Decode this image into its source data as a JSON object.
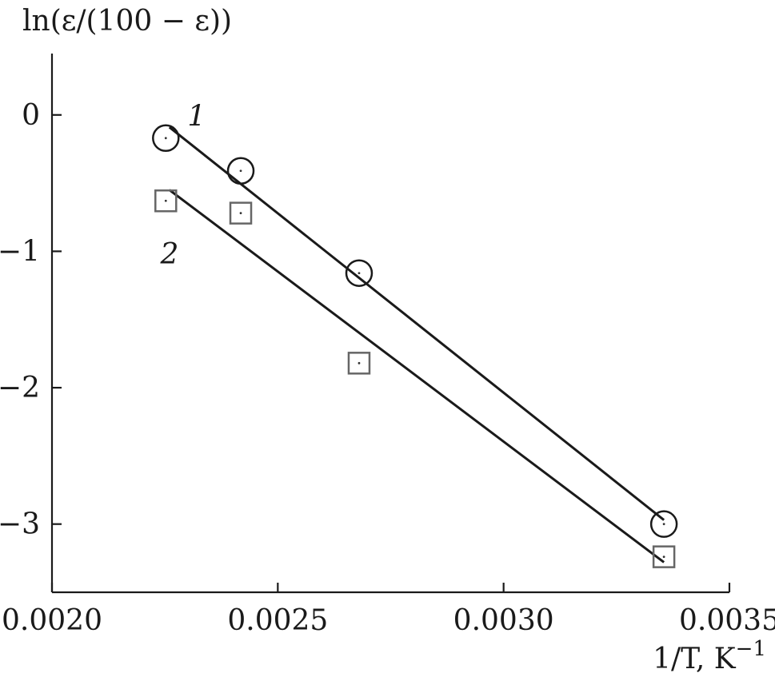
{
  "chart_data": {
    "type": "scatter",
    "title": "",
    "xlabel": "1/T, K",
    "xlabel_sup": "−1",
    "ylabel": "ln(ε/(100 − ε))",
    "xlim": [
      0.002,
      0.0035
    ],
    "ylim": [
      -3.5,
      0.45
    ],
    "xticks": [
      {
        "value": 0.002,
        "label": "0.0020"
      },
      {
        "value": 0.0025,
        "label": "0.0025"
      },
      {
        "value": 0.003,
        "label": "0.0030"
      },
      {
        "value": 0.0035,
        "label": "0.0035"
      }
    ],
    "yticks": [
      {
        "value": 0,
        "label": "0"
      },
      {
        "value": -1,
        "label": "−1"
      },
      {
        "value": -2,
        "label": "−2"
      },
      {
        "value": -3,
        "label": "−3"
      }
    ],
    "grid": false,
    "legend": "none",
    "series": [
      {
        "name": "1",
        "marker": "circle",
        "color": "#1a1a1a",
        "points": [
          {
            "x": 0.002252,
            "y": -0.17
          },
          {
            "x": 0.002418,
            "y": -0.41
          },
          {
            "x": 0.00268,
            "y": -1.16
          },
          {
            "x": 0.003355,
            "y": -3.0
          }
        ],
        "fit": {
          "x": [
            0.00226,
            0.003355
          ],
          "y": [
            -0.09,
            -2.97
          ]
        }
      },
      {
        "name": "2",
        "marker": "square",
        "color": "#666666",
        "points": [
          {
            "x": 0.002252,
            "y": -0.63
          },
          {
            "x": 0.002418,
            "y": -0.72
          },
          {
            "x": 0.00268,
            "y": -1.82
          },
          {
            "x": 0.003355,
            "y": -3.24
          }
        ],
        "fit": {
          "x": [
            0.00226,
            0.003355
          ],
          "y": [
            -0.55,
            -3.28
          ]
        }
      }
    ]
  }
}
